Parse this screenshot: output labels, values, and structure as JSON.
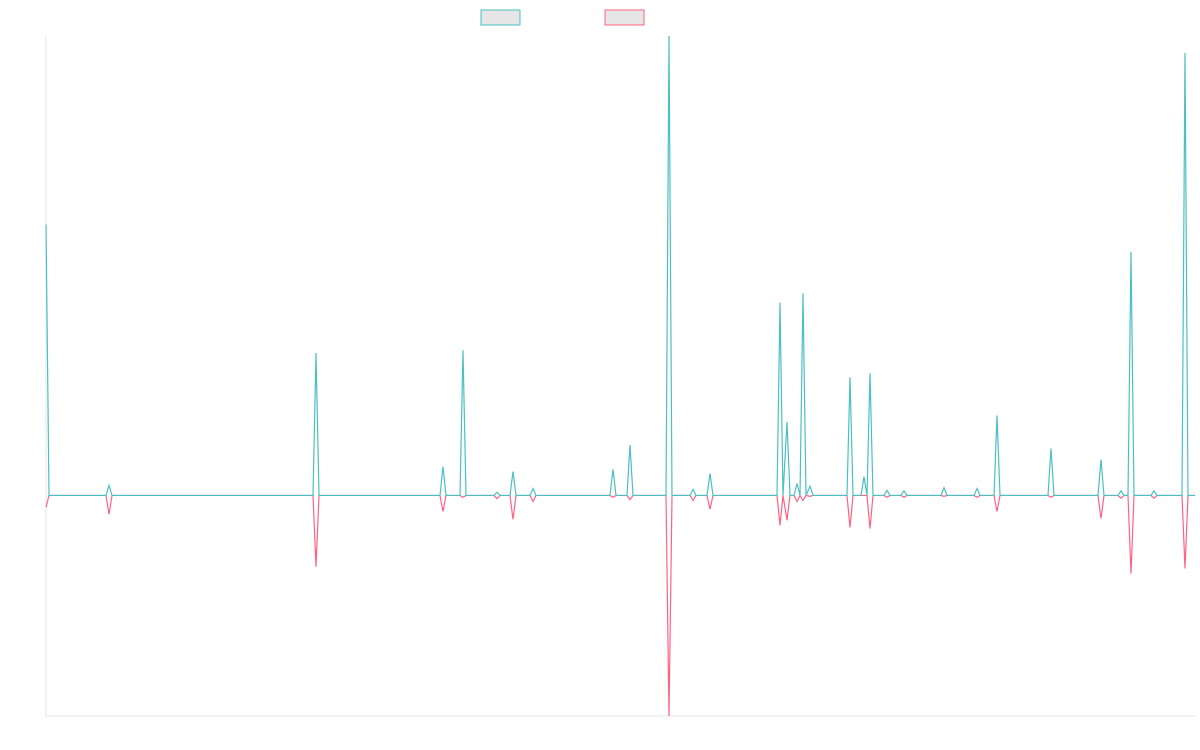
{
  "chart_data": {
    "type": "line",
    "x": [
      0,
      3,
      60,
      63,
      66,
      267,
      270,
      273,
      394,
      397,
      400,
      414,
      417,
      420,
      448,
      451,
      454,
      464,
      467,
      470,
      484,
      487,
      490,
      564,
      567,
      570,
      581,
      584,
      587,
      620,
      623,
      626,
      644,
      647,
      650,
      661,
      664,
      667,
      731,
      734,
      737,
      741,
      744,
      748,
      751,
      754,
      757,
      760,
      764,
      767,
      801,
      804,
      807,
      815,
      818,
      821,
      824,
      827,
      838,
      841,
      844,
      855,
      858,
      861,
      895,
      898,
      901,
      928,
      931,
      934,
      948,
      951,
      954,
      1002,
      1005,
      1008,
      1052,
      1055,
      1058,
      1072,
      1075,
      1078,
      1082,
      1085,
      1088,
      1105,
      1108,
      1111,
      1136,
      1139,
      1142,
      1149
    ],
    "series": [
      {
        "color": "#4bc0c0",
        "values": [
          59,
          0,
          0,
          2.2,
          0,
          0,
          31,
          0,
          0,
          6.3,
          0,
          0,
          31.6,
          0,
          0,
          0.7,
          0,
          0,
          5.2,
          0,
          0,
          1.5,
          0,
          0,
          5.7,
          0,
          0,
          11,
          0,
          0,
          100,
          0,
          0,
          1.3,
          0,
          0,
          4.8,
          0,
          0,
          42,
          0,
          16,
          0,
          0,
          2.6,
          0,
          44,
          0,
          2,
          0,
          0,
          25.7,
          0,
          0,
          4.1,
          0,
          26.6,
          0,
          0,
          1.1,
          0,
          0,
          1,
          0,
          0,
          1.7,
          0,
          0,
          1.5,
          0,
          0,
          17.4,
          0,
          0,
          10.2,
          0,
          0,
          7.8,
          0,
          0,
          1,
          0,
          0,
          53,
          0,
          0,
          1,
          0,
          0,
          96.3,
          0,
          0
        ]
      },
      {
        "color": "#ff6384",
        "values": [
          -2.6,
          0,
          0,
          -4.1,
          0,
          0,
          -15.5,
          0,
          0,
          -3.5,
          0,
          0,
          -0.4,
          0,
          0,
          -0.7,
          0,
          0,
          -5.2,
          0,
          0,
          -1.3,
          0,
          0,
          -0.4,
          0,
          0,
          -0.9,
          0,
          0,
          -48,
          0,
          0,
          -1.1,
          0,
          0,
          -3,
          0,
          0,
          -6.5,
          0,
          -5.4,
          0,
          0,
          -1.3,
          0,
          -1.1,
          0,
          -0.2,
          0,
          0,
          -7,
          0,
          0,
          0,
          0,
          -7.2,
          0,
          0,
          -0.4,
          0,
          0,
          -0.4,
          0,
          0,
          -0.2,
          0,
          0,
          -0.4,
          0,
          0,
          -3.5,
          0,
          0,
          -0.4,
          0,
          0,
          -5,
          0,
          0,
          -0.6,
          0,
          0,
          -17,
          0,
          0,
          -0.6,
          0,
          0,
          -15.9,
          0,
          0
        ]
      }
    ],
    "xlim": [
      0,
      1149
    ],
    "ylim": [
      -48,
      100
    ]
  }
}
